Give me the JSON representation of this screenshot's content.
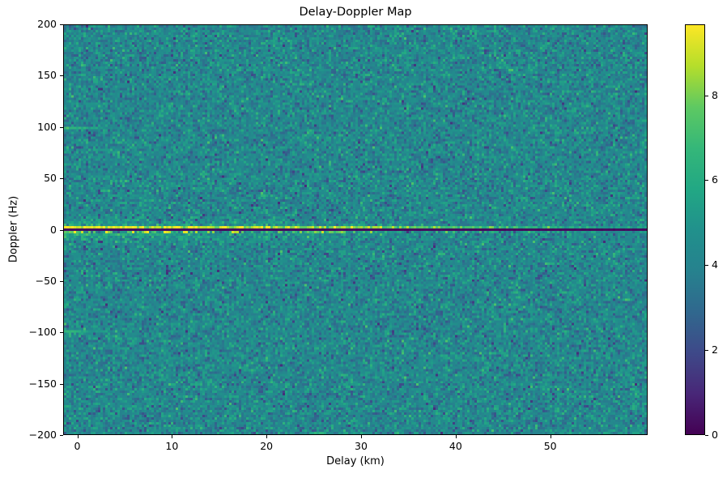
{
  "figure": {
    "title": "Delay-Doppler Map",
    "background_color": "#ffffff",
    "axis_color": "#000000"
  },
  "chart_data": {
    "type": "heatmap",
    "title": "Delay-Doppler Map",
    "xlabel": "Delay (km)",
    "ylabel": "Doppler (Hz)",
    "colormap": "viridis",
    "x_range_km": [
      -1.5,
      60.3
    ],
    "y_range_hz": [
      -200,
      200
    ],
    "x_ticks": {
      "values": [
        0,
        10,
        20,
        30,
        40,
        50
      ],
      "labels": [
        "0",
        "10",
        "20",
        "30",
        "40",
        "50"
      ]
    },
    "y_ticks": {
      "values": [
        200,
        150,
        100,
        50,
        0,
        -50,
        -100,
        -150,
        -200
      ],
      "labels": [
        "200",
        "150",
        "100",
        "50",
        "0",
        "−50",
        "−100",
        "−150",
        "−200"
      ]
    },
    "colorbar": {
      "vmin": 0,
      "vmax": 9.67,
      "tick_values": [
        0,
        2,
        4,
        6,
        8
      ],
      "tick_labels": [
        "0",
        "2",
        "4",
        "6",
        "8"
      ]
    },
    "grid": {
      "cols": 240,
      "rows": 169,
      "seed": 42
    },
    "background_noise": {
      "mean": 4.25,
      "std": 0.95,
      "clip_min": 1.1,
      "clip_max": 7.3
    },
    "features": [
      {
        "name": "zero-doppler-dark-notch",
        "doppler_hz": 0,
        "half_width_hz": 1.2,
        "value": 0.15,
        "delay_km": [
          -1.5,
          60.3
        ]
      },
      {
        "name": "zero-doppler-bright-ridge-above",
        "doppler_hz": [
          1.2,
          3.6
        ],
        "value_at_zero_delay": 9.4,
        "decay": "linear, ~yellow to 32 km, fades into background by ~55 km"
      },
      {
        "name": "zero-doppler-bright-ridge-below",
        "doppler_hz": [
          -3.6,
          -1.2
        ],
        "value_at_zero_delay": 8.4,
        "speckled": true
      },
      {
        "name": "zero-doppler-halo",
        "doppler_hz": [
          -14,
          14
        ],
        "peak_add": 1.9,
        "fades_with_delay": true
      },
      {
        "name": "ambiguity-streak-plus-100hz",
        "doppler_hz": 100,
        "delay_km": [
          -1.5,
          4
        ],
        "peak_value": 7.0
      },
      {
        "name": "ambiguity-streak-minus-100hz",
        "doppler_hz": -100,
        "delay_km": [
          -1.5,
          4
        ],
        "peak_value": 7.0
      }
    ]
  }
}
